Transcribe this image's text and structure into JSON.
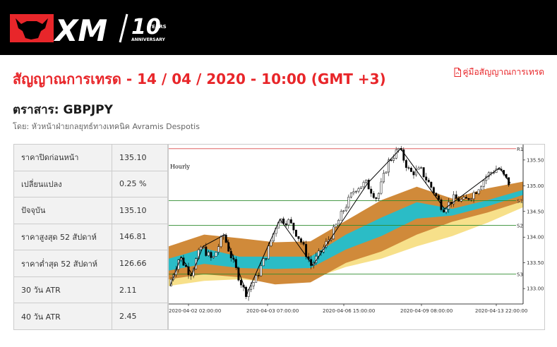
{
  "brand": {
    "logo_text": "XM",
    "anniversary_number": "10",
    "years_text": "YEARS",
    "anniversary_text": "ANNIVERSARY",
    "header_color": "#000000",
    "accent_color": "#e8262a"
  },
  "page": {
    "title": "สัญญาณการเทรด - 14 / 04 / 2020 - 10:00 (GMT +3)",
    "guide_link": "คู่มือสัญญาณการเทรด",
    "instrument": "ตราสาร: GBPJPY",
    "author": "โดย: หัวหน้าฝ่ายกลยุทธ์ทางเทคนิค Avramis Despotis"
  },
  "stats": [
    {
      "label": "ราคาปิดก่อนหน้า",
      "value": "135.10"
    },
    {
      "label": "เปลี่ยนแปลง",
      "value": "0.25 %"
    },
    {
      "label": "ปัจจุบัน",
      "value": "135.10"
    },
    {
      "label": "ราคาสูงสุด 52 สัปดาห์",
      "value": "146.81"
    },
    {
      "label": "ราคาต่ำสุด 52 สัปดาห์",
      "value": "126.66"
    },
    {
      "label": "30 วัน ATR",
      "value": "2.11"
    },
    {
      "label": "40 วัน ATR",
      "value": "2.45"
    }
  ],
  "chart_data": {
    "type": "candlestick",
    "timeframe": "Hourly",
    "ylim": [
      132.7,
      135.8
    ],
    "y_ticks": [
      "133.00",
      "133.50",
      "134.00",
      "134.50",
      "135.00",
      "135.50"
    ],
    "x_ticks": [
      "2020-04-02 02:00:00",
      "2020-04-03 07:00:00",
      "2020-04-06 15:00:00",
      "2020-04-09 08:00:00",
      "2020-04-13 22:00:00"
    ],
    "levels": [
      {
        "name": "R1",
        "value": 135.72,
        "color": "#d94a4a"
      },
      {
        "name": "S1",
        "value": 134.71,
        "color": "#2e8b2e"
      },
      {
        "name": "S2",
        "value": 134.23,
        "color": "#2e8b2e"
      },
      {
        "name": "S3",
        "value": 133.28,
        "color": "#2e8b2e"
      }
    ],
    "bands": [
      {
        "name": "outer-yellow",
        "color": "#f7e08a",
        "upper": [
          133.58,
          133.68,
          133.55,
          133.47,
          133.55,
          133.95,
          134.15,
          134.28,
          134.38,
          134.5,
          134.78
        ],
        "lower": [
          133.05,
          133.15,
          133.18,
          133.12,
          133.18,
          133.42,
          133.58,
          133.82,
          134.02,
          134.28,
          134.58
        ]
      },
      {
        "name": "orange",
        "color": "#d08a3a",
        "upper": [
          133.82,
          134.05,
          133.98,
          133.9,
          133.92,
          134.32,
          134.72,
          134.98,
          134.75,
          134.95,
          135.08
        ],
        "lower": [
          133.18,
          133.28,
          133.22,
          133.08,
          133.12,
          133.5,
          133.72,
          134.05,
          134.3,
          134.48,
          134.7
        ]
      },
      {
        "name": "teal",
        "color": "#2bbcc6",
        "upper": [
          133.58,
          133.78,
          133.62,
          133.62,
          133.62,
          134.05,
          134.38,
          134.68,
          134.55,
          134.72,
          134.92
        ],
        "lower": [
          133.35,
          133.48,
          133.4,
          133.38,
          133.4,
          133.76,
          134.02,
          134.36,
          134.42,
          134.6,
          134.82
        ]
      }
    ],
    "price_path": [
      133.05,
      133.62,
      133.28,
      133.82,
      133.55,
      134.05,
      133.45,
      132.9,
      133.2,
      133.7,
      134.35,
      134.3,
      133.95,
      133.45,
      133.75,
      134.1,
      134.55,
      134.95,
      135.05,
      134.75,
      135.45,
      135.72,
      135.25,
      135.3,
      134.95,
      134.55,
      134.75,
      134.7,
      134.9,
      135.2,
      135.35,
      135.05
    ]
  }
}
